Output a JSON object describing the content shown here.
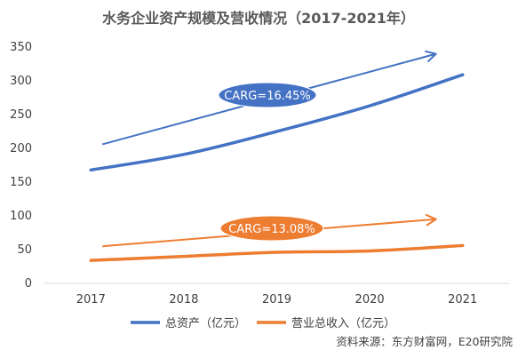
{
  "chart_data": {
    "type": "line",
    "title": "水务企业资产规模及营收情况（2017-2021年）",
    "categories": [
      "2017",
      "2018",
      "2019",
      "2020",
      "2021"
    ],
    "series": [
      {
        "name": "总资产（亿元）",
        "values": [
          168,
          191,
          225,
          263,
          309
        ],
        "color": "#4472C4"
      },
      {
        "name": "营业总收入（亿元）",
        "values": [
          34,
          40,
          46,
          48,
          56
        ],
        "color": "#ED7D31"
      }
    ],
    "ylim": [
      0,
      350
    ],
    "yticks": [
      "0",
      "50",
      "100",
      "150",
      "200",
      "250",
      "300",
      "350"
    ],
    "grid": false,
    "legend": "bottom",
    "annotations": [
      {
        "label": "CARG=16.45%",
        "color": "#4472C4",
        "series": 0
      },
      {
        "label": "CARG=13.08%",
        "color": "#ED7D31",
        "series": 1
      }
    ],
    "trend_arrows": [
      {
        "series": 0,
        "from": [
          "2017",
          206
        ],
        "to": [
          "2021",
          340
        ]
      },
      {
        "series": 1,
        "from": [
          "2017",
          55
        ],
        "to": [
          "2021",
          95
        ]
      }
    ]
  },
  "source_note": "资料来源：东方财富网，E20研究院"
}
